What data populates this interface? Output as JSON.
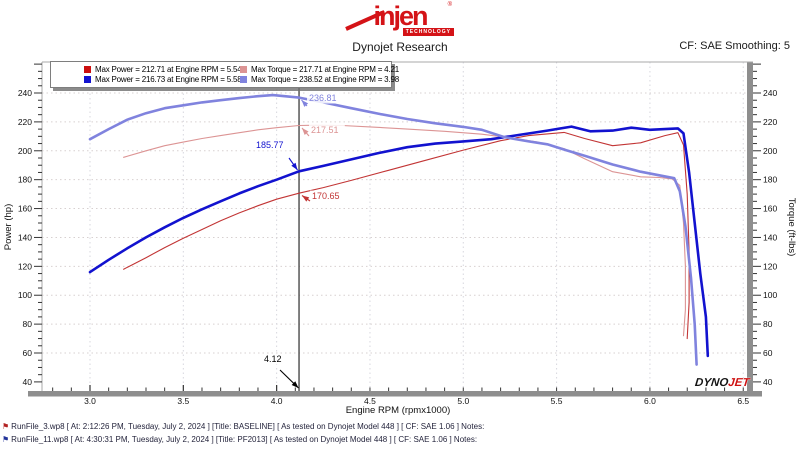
{
  "header": {
    "logo_text": "injen",
    "logo_sub": "TECHNOLOGY",
    "logo_reg": "®",
    "center_title": "Dynojet Research",
    "smoothing_label": "CF: SAE Smoothing: 5"
  },
  "legend": {
    "entries": [
      {
        "color": "#cc0f0f",
        "label": "Max Power = 212.71 at Engine RPM = 5.54"
      },
      {
        "color": "#dc9494",
        "label": "Max Torque = 217.71 at Engine RPM = 4.21"
      },
      {
        "color": "#1212cf",
        "label": "Max Power = 216.73 at Engine RPM = 5.58"
      },
      {
        "color": "#8083de",
        "label": "Max Torque = 238.52 at Engine RPM = 3.98"
      }
    ]
  },
  "chart_data": {
    "type": "line",
    "xlabel": "Engine RPM (rpmx1000)",
    "ylabel_left": "Power (hp)",
    "ylabel_right": "Torque (ft-lbs)",
    "xlim": [
      2.74,
      6.52
    ],
    "ylim": [
      32,
      261
    ],
    "x_ticks": [
      "3.0",
      "3.5",
      "4.0",
      "4.5",
      "5.0",
      "5.5",
      "6.0",
      "6.5"
    ],
    "x_minor_step": 0.1,
    "y_ticks": [
      40,
      60,
      80,
      100,
      120,
      140,
      160,
      180,
      200,
      220,
      240
    ],
    "y_minor_step": 5,
    "grid": true,
    "legend_position": "top-left",
    "series": [
      {
        "name": "BASELINE Power",
        "unit": "hp",
        "color": "#c23535",
        "width": 1.1,
        "points": [
          [
            3.18,
            118
          ],
          [
            3.3,
            126
          ],
          [
            3.4,
            133
          ],
          [
            3.5,
            139.5
          ],
          [
            3.6,
            145.5
          ],
          [
            3.7,
            151.5
          ],
          [
            3.8,
            157
          ],
          [
            3.9,
            162
          ],
          [
            4.0,
            166.5
          ],
          [
            4.12,
            170.65
          ],
          [
            4.25,
            174.5
          ],
          [
            4.4,
            179.5
          ],
          [
            4.6,
            186.5
          ],
          [
            4.8,
            193.5
          ],
          [
            5.0,
            200.5
          ],
          [
            5.2,
            207
          ],
          [
            5.35,
            210.5
          ],
          [
            5.54,
            212.71
          ],
          [
            5.65,
            208.5
          ],
          [
            5.8,
            203.5
          ],
          [
            5.95,
            205.5
          ],
          [
            6.08,
            210.5
          ],
          [
            6.15,
            212.5
          ],
          [
            6.18,
            204
          ],
          [
            6.2,
            170
          ],
          [
            6.21,
            130
          ],
          [
            6.21,
            95
          ],
          [
            6.2,
            70
          ]
        ]
      },
      {
        "name": "BASELINE Torque",
        "unit": "ft-lbs",
        "color": "#dc9494",
        "width": 1.1,
        "points": [
          [
            3.18,
            195.5
          ],
          [
            3.3,
            200
          ],
          [
            3.4,
            203.5
          ],
          [
            3.5,
            206
          ],
          [
            3.6,
            208.5
          ],
          [
            3.7,
            210.5
          ],
          [
            3.8,
            212.5
          ],
          [
            3.9,
            214.5
          ],
          [
            4.0,
            216
          ],
          [
            4.12,
            217.51
          ],
          [
            4.21,
            217.71
          ],
          [
            4.35,
            217.5
          ],
          [
            4.5,
            216.5
          ],
          [
            4.7,
            215
          ],
          [
            4.9,
            213.5
          ],
          [
            5.1,
            211.5
          ],
          [
            5.25,
            209
          ],
          [
            5.4,
            206
          ],
          [
            5.54,
            201.5
          ],
          [
            5.65,
            194.5
          ],
          [
            5.8,
            185.5
          ],
          [
            5.95,
            182
          ],
          [
            6.05,
            181.5
          ],
          [
            6.12,
            180.5
          ],
          [
            6.16,
            176
          ],
          [
            6.18,
            150
          ],
          [
            6.19,
            120
          ],
          [
            6.19,
            90
          ],
          [
            6.18,
            72
          ]
        ]
      },
      {
        "name": "PF2013 Power",
        "unit": "hp",
        "color": "#1212cf",
        "width": 2.6,
        "points": [
          [
            3.0,
            116
          ],
          [
            3.1,
            124.5
          ],
          [
            3.2,
            132.5
          ],
          [
            3.3,
            140
          ],
          [
            3.4,
            147
          ],
          [
            3.5,
            153.5
          ],
          [
            3.6,
            159.5
          ],
          [
            3.7,
            165
          ],
          [
            3.8,
            170.5
          ],
          [
            3.9,
            175.5
          ],
          [
            4.0,
            180
          ],
          [
            4.12,
            185.77
          ],
          [
            4.25,
            189.5
          ],
          [
            4.4,
            194
          ],
          [
            4.55,
            198.5
          ],
          [
            4.7,
            202.5
          ],
          [
            4.85,
            205
          ],
          [
            5.0,
            206.5
          ],
          [
            5.15,
            208
          ],
          [
            5.3,
            211
          ],
          [
            5.45,
            214
          ],
          [
            5.58,
            216.73
          ],
          [
            5.68,
            213.5
          ],
          [
            5.8,
            214
          ],
          [
            5.9,
            216
          ],
          [
            6.0,
            214.5
          ],
          [
            6.08,
            215
          ],
          [
            6.15,
            215.5
          ],
          [
            6.18,
            212
          ],
          [
            6.21,
            185
          ],
          [
            6.24,
            150
          ],
          [
            6.27,
            115
          ],
          [
            6.3,
            85
          ],
          [
            6.31,
            58
          ]
        ]
      },
      {
        "name": "PF2013 Torque",
        "unit": "ft-lbs",
        "color": "#8083de",
        "width": 2.6,
        "points": [
          [
            3.0,
            208
          ],
          [
            3.1,
            215
          ],
          [
            3.2,
            221.5
          ],
          [
            3.3,
            226
          ],
          [
            3.4,
            229.5
          ],
          [
            3.5,
            231.5
          ],
          [
            3.6,
            233.5
          ],
          [
            3.7,
            235
          ],
          [
            3.8,
            236.5
          ],
          [
            3.9,
            237.8
          ],
          [
            3.98,
            238.52
          ],
          [
            4.12,
            236.81
          ],
          [
            4.25,
            233.5
          ],
          [
            4.4,
            229.5
          ],
          [
            4.55,
            225.5
          ],
          [
            4.7,
            222
          ],
          [
            4.85,
            219
          ],
          [
            5.0,
            216.5
          ],
          [
            5.1,
            214.5
          ],
          [
            5.22,
            209.5
          ],
          [
            5.35,
            206.5
          ],
          [
            5.45,
            204.5
          ],
          [
            5.55,
            200.5
          ],
          [
            5.65,
            196.5
          ],
          [
            5.8,
            190.5
          ],
          [
            5.95,
            185.5
          ],
          [
            6.05,
            183
          ],
          [
            6.13,
            181
          ],
          [
            6.16,
            172
          ],
          [
            6.19,
            148
          ],
          [
            6.22,
            112
          ],
          [
            6.24,
            80
          ],
          [
            6.25,
            52
          ]
        ]
      }
    ],
    "cursor": {
      "rpm": 4.12,
      "label": "4.12"
    },
    "annotations": [
      {
        "text": "236.81",
        "value": 236.81,
        "series": 3,
        "color": "#8083de"
      },
      {
        "text": "217.51",
        "value": 217.51,
        "series": 1,
        "color": "#dc9494"
      },
      {
        "text": "185.77",
        "value": 185.77,
        "series": 2,
        "color": "#1212cf"
      },
      {
        "text": "170.65",
        "value": 170.65,
        "series": 0,
        "color": "#c23535"
      },
      {
        "text": "4.12",
        "value": null,
        "series": null,
        "color": "#000000"
      }
    ]
  },
  "watermark": {
    "dyno": "DYNO",
    "jet": "JET"
  },
  "footer": {
    "runs": [
      {
        "flag_color": "#b22222",
        "text": "RunFile_3.wp8 [ At: 2:12:26 PM, Tuesday, July 2, 2024 ] [Title: BASELINE]  [ As tested on Dynojet Model 448 ] [ CF: SAE 1.06 ] Notes:"
      },
      {
        "flag_color": "#223399",
        "text": "RunFile_11.wp8 [ At: 4:30:31 PM, Tuesday, July 2, 2024 ] [Title: PF2013]  [ As tested on Dynojet Model 448 ] [ CF: SAE 1.06 ] Notes:"
      }
    ]
  }
}
